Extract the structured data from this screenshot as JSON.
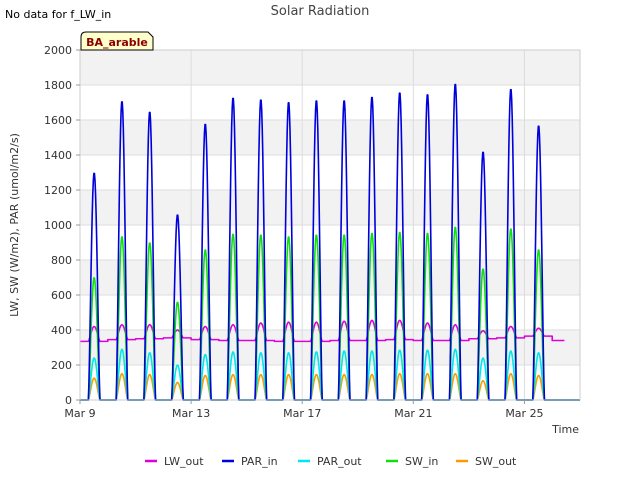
{
  "chart_data": {
    "type": "line",
    "title": "Solar Radiation",
    "no_data_note": "No data for f_LW_in",
    "site_badge": "BA_arable",
    "xlabel": "Time",
    "ylabel": "LW, SW (W/m2), PAR (umol/m2/s)",
    "xlim": [
      "2023-03-09",
      "2023-03-27"
    ],
    "ylim": [
      0,
      2000
    ],
    "y_ticks": [
      0,
      200,
      400,
      600,
      800,
      1000,
      1200,
      1400,
      1600,
      1800,
      2000
    ],
    "x_ticks": [
      {
        "date": "2023-03-09",
        "label": "Mar 9"
      },
      {
        "date": "2023-03-13",
        "label": "Mar 13"
      },
      {
        "date": "2023-03-17",
        "label": "Mar 17"
      },
      {
        "date": "2023-03-21",
        "label": "Mar 21"
      },
      {
        "date": "2023-03-25",
        "label": "Mar 25"
      }
    ],
    "grid": true,
    "legend_position": "bottom",
    "daily_peaks": {
      "dates": [
        "2023-03-09",
        "2023-03-10",
        "2023-03-11",
        "2023-03-12",
        "2023-03-13",
        "2023-03-14",
        "2023-03-15",
        "2023-03-16",
        "2023-03-17",
        "2023-03-18",
        "2023-03-19",
        "2023-03-20",
        "2023-03-21",
        "2023-03-22",
        "2023-03-23",
        "2023-03-24",
        "2023-03-25",
        "2023-03-26"
      ],
      "PAR_in": [
        1300,
        1710,
        1650,
        1060,
        1580,
        1730,
        1720,
        1705,
        1715,
        1715,
        1735,
        1760,
        1750,
        1810,
        1420,
        1780,
        1570,
        0
      ],
      "SW_in": [
        700,
        935,
        900,
        560,
        860,
        950,
        945,
        935,
        945,
        945,
        955,
        960,
        955,
        990,
        750,
        980,
        860,
        0
      ],
      "PAR_out": [
        240,
        290,
        270,
        200,
        260,
        275,
        270,
        270,
        275,
        280,
        280,
        285,
        285,
        290,
        240,
        280,
        270,
        0
      ],
      "SW_out": [
        125,
        150,
        145,
        100,
        140,
        145,
        145,
        145,
        145,
        145,
        145,
        150,
        150,
        150,
        110,
        150,
        140,
        0
      ],
      "LW_out_night": [
        335,
        345,
        350,
        355,
        345,
        340,
        340,
        335,
        335,
        340,
        340,
        345,
        340,
        340,
        350,
        355,
        365,
        340
      ],
      "LW_out_day": [
        420,
        430,
        430,
        400,
        420,
        430,
        440,
        445,
        445,
        450,
        455,
        455,
        440,
        430,
        395,
        420,
        410,
        0
      ]
    },
    "series": [
      {
        "name": "LW_out",
        "color": "#dd00dd"
      },
      {
        "name": "PAR_in",
        "color": "#0000dd"
      },
      {
        "name": "PAR_out",
        "color": "#00e5ee"
      },
      {
        "name": "SW_in",
        "color": "#11dd11"
      },
      {
        "name": "SW_out",
        "color": "#ff9900"
      }
    ]
  }
}
